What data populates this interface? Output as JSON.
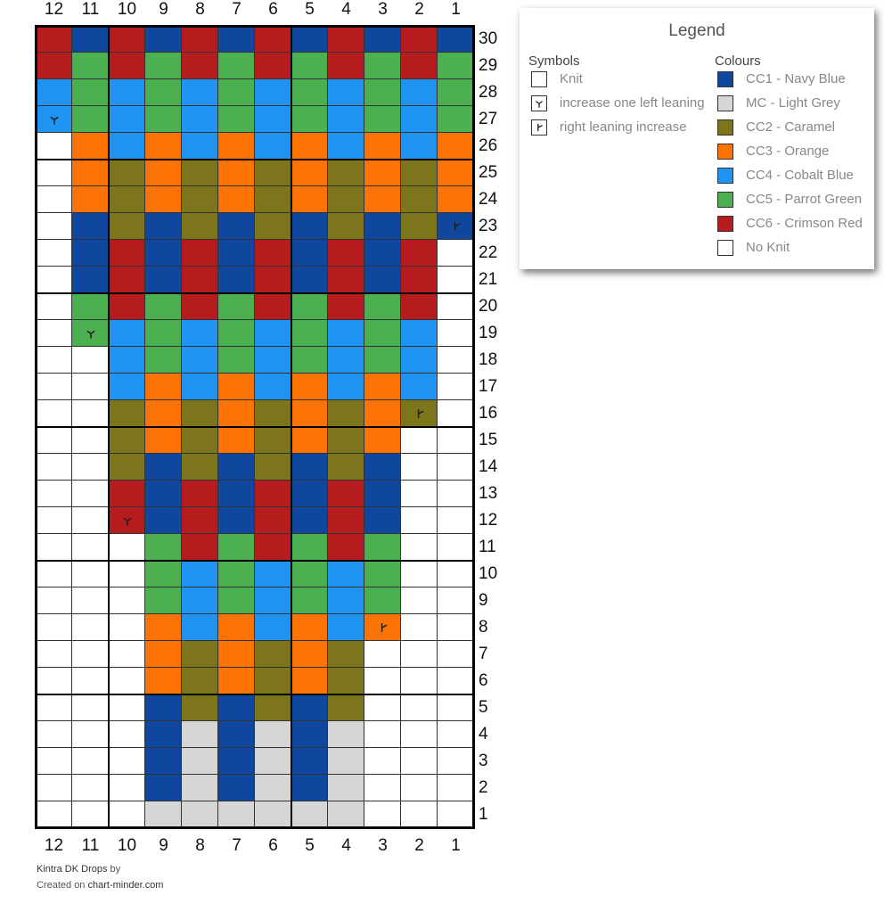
{
  "chart": {
    "columns": 12,
    "rows": 30,
    "column_numbers": [
      "12",
      "11",
      "10",
      "9",
      "8",
      "7",
      "6",
      "5",
      "4",
      "3",
      "2",
      "1"
    ],
    "row_numbers": [
      "1",
      "2",
      "3",
      "4",
      "5",
      "6",
      "7",
      "8",
      "9",
      "10",
      "11",
      "12",
      "13",
      "14",
      "15",
      "16",
      "17",
      "18",
      "19",
      "20",
      "21",
      "22",
      "23",
      "24",
      "25",
      "26",
      "27",
      "28",
      "29",
      "30"
    ],
    "grid_rows_top_to_bottom": [
      "RNRNRNRNRNRN",
      "RGRGRGRGRGRG",
      "BGBGBGBGBGBG",
      "BGBGBGBGBGBG",
      "WOBOBOBOBOBO",
      "WOCOCOCOCOCO",
      "WOCOCOCOCOCO",
      "WNCNCNCNCNCN",
      "WNRNRNRNRNRW",
      "WNRNRNRNRNRW",
      "WGRGRGRGRGRW",
      "WGBGBGBGBGBW",
      "WWBGBGBGBGBW",
      "WWBOBOBOBOBW",
      "WWCOCOCOCOCW",
      "WWCOCOCOCOWW",
      "WWCNCNCNCNWW",
      "WWRNRNRNRNWW",
      "WWRNRNRNRNWW",
      "WWWGRGRGRGWW",
      "WWWGBGBGBGWW",
      "WWWGBGBGBGWW",
      "WWWOBOBOBOWW",
      "WWWOCOCOCWWW",
      "WWWOCOCOCWWW",
      "WWWNCNCNCWWW",
      "WWWNLNLNLWWW",
      "WWWNLNLNLWWW",
      "WWWNLNLNLWWW",
      "WWWLLLLLLWWW"
    ],
    "symbols": [
      {
        "row": "27",
        "col": "12",
        "type": "increase-left"
      },
      {
        "row": "23",
        "col": "1",
        "type": "increase-right"
      },
      {
        "row": "19",
        "col": "11",
        "type": "increase-left"
      },
      {
        "row": "16",
        "col": "2",
        "type": "increase-right"
      },
      {
        "row": "12",
        "col": "10",
        "type": "increase-left"
      },
      {
        "row": "8",
        "col": "3",
        "type": "increase-right"
      }
    ]
  },
  "colors": {
    "N": "#0e479d",
    "L": "#d6d6d6",
    "C": "#7d751c",
    "O": "#fc7203",
    "B": "#2094f3",
    "G": "#4caf50",
    "R": "#b61c1e",
    "W": "#ffffff"
  },
  "legend": {
    "title": "Legend",
    "symbols_heading": "Symbols",
    "symbols": [
      {
        "type": "knit",
        "label": "Knit"
      },
      {
        "type": "increase-left",
        "label": "increase one left leaning"
      },
      {
        "type": "increase-right",
        "label": "right leaning increase"
      }
    ],
    "colours_heading": "Colours",
    "colours": [
      {
        "key": "N",
        "label": "CC1 - Navy Blue"
      },
      {
        "key": "L",
        "label": "MC - Light Grey"
      },
      {
        "key": "C",
        "label": "CC2 - Caramel"
      },
      {
        "key": "O",
        "label": "CC3 - Orange"
      },
      {
        "key": "B",
        "label": "CC4 - Cobalt Blue"
      },
      {
        "key": "G",
        "label": "CC5 - Parrot Green"
      },
      {
        "key": "R",
        "label": "CC6 - Crimson Red"
      },
      {
        "key": "W",
        "label": "No Knit"
      }
    ]
  },
  "footer": {
    "pattern_name": "Kintra DK Drops",
    "by_text": "by",
    "created_on_text": "Created on",
    "site": "chart-minder.com"
  }
}
